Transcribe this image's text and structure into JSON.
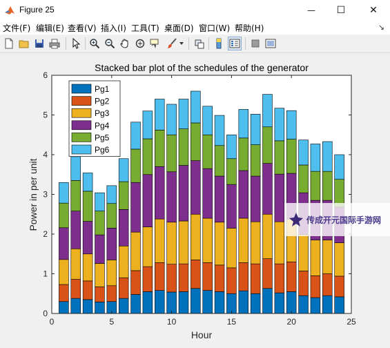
{
  "window": {
    "title": "Figure 25",
    "min_glyph": "—",
    "max_glyph": "☐",
    "close_glyph": "✕",
    "app_icon": "matlab-icon"
  },
  "menu": [
    "文件(F)",
    "编辑(E)",
    "查看(V)",
    "插入(I)",
    "工具(T)",
    "桌面(D)",
    "窗口(W)",
    "帮助(H)"
  ],
  "toolbar_icons": [
    "new-figure-icon",
    "open-file-icon",
    "save-icon",
    "print-icon",
    "pointer-icon",
    "zoom-in-icon",
    "zoom-out-icon",
    "pan-icon",
    "rotate-3d-icon",
    "data-cursor-icon",
    "brush-icon",
    "link-plot-icon",
    "colorbar-icon",
    "legend-icon",
    "hide-plot-tools-icon",
    "show-plot-tools-icon"
  ],
  "watermark": {
    "text": "传成开元国际手游网",
    "icon": "logo-icon"
  },
  "chart_data": {
    "type": "bar",
    "stacked": true,
    "title": "Stacked bar plot of the schedules of the generator",
    "xlabel": "Hour",
    "ylabel": "Power in per unit",
    "xlim": [
      0,
      25
    ],
    "ylim": [
      0,
      6
    ],
    "xticks": [
      0,
      5,
      10,
      15,
      20,
      25
    ],
    "yticks": [
      0,
      1,
      2,
      3,
      4,
      5,
      6
    ],
    "legend_position": "top-left",
    "grid": false,
    "categories": [
      1,
      2,
      3,
      4,
      5,
      6,
      7,
      8,
      9,
      10,
      11,
      12,
      13,
      14,
      15,
      16,
      17,
      18,
      19,
      20,
      21,
      22,
      23,
      24
    ],
    "series": [
      {
        "name": "Pg1",
        "color": "#0072BD",
        "values": [
          0.3,
          0.38,
          0.35,
          0.29,
          0.3,
          0.38,
          0.48,
          0.55,
          0.58,
          0.54,
          0.55,
          0.63,
          0.58,
          0.55,
          0.5,
          0.57,
          0.5,
          0.63,
          0.52,
          0.55,
          0.45,
          0.4,
          0.45,
          0.42
        ]
      },
      {
        "name": "Pg2",
        "color": "#D95319",
        "values": [
          0.43,
          0.48,
          0.47,
          0.38,
          0.4,
          0.52,
          0.6,
          0.63,
          0.7,
          0.7,
          0.7,
          0.72,
          0.7,
          0.67,
          0.65,
          0.71,
          0.75,
          0.75,
          0.73,
          0.75,
          0.62,
          0.55,
          0.55,
          0.52
        ]
      },
      {
        "name": "Pg3",
        "color": "#EDB120",
        "values": [
          0.63,
          0.77,
          0.68,
          0.59,
          0.65,
          0.8,
          0.97,
          1.0,
          1.1,
          1.06,
          1.08,
          1.15,
          1.12,
          1.08,
          1.0,
          1.12,
          1.06,
          1.12,
          1.06,
          1.08,
          0.92,
          0.9,
          0.85,
          0.84
        ]
      },
      {
        "name": "Pg4",
        "color": "#7E2F8E",
        "values": [
          0.8,
          0.95,
          0.82,
          0.72,
          0.8,
          0.92,
          1.25,
          1.32,
          1.32,
          1.27,
          1.4,
          1.35,
          1.25,
          1.16,
          1.1,
          1.2,
          1.15,
          1.28,
          1.2,
          1.15,
          1.05,
          1.0,
          1.0,
          0.9
        ]
      },
      {
        "name": "Pg5",
        "color": "#77AC30",
        "values": [
          0.62,
          0.77,
          0.76,
          0.6,
          0.62,
          0.7,
          0.84,
          0.9,
          0.92,
          0.93,
          0.92,
          0.95,
          0.85,
          0.77,
          0.65,
          0.82,
          0.79,
          0.92,
          0.84,
          0.86,
          0.7,
          0.73,
          0.73,
          0.7
        ]
      },
      {
        "name": "Pg6",
        "color": "#4DBEEE",
        "values": [
          0.52,
          0.6,
          0.46,
          0.46,
          0.45,
          0.58,
          0.68,
          0.7,
          0.78,
          0.77,
          0.75,
          0.8,
          0.72,
          0.76,
          0.6,
          0.72,
          0.77,
          0.82,
          0.82,
          0.72,
          0.63,
          0.69,
          0.75,
          0.62
        ]
      }
    ]
  }
}
